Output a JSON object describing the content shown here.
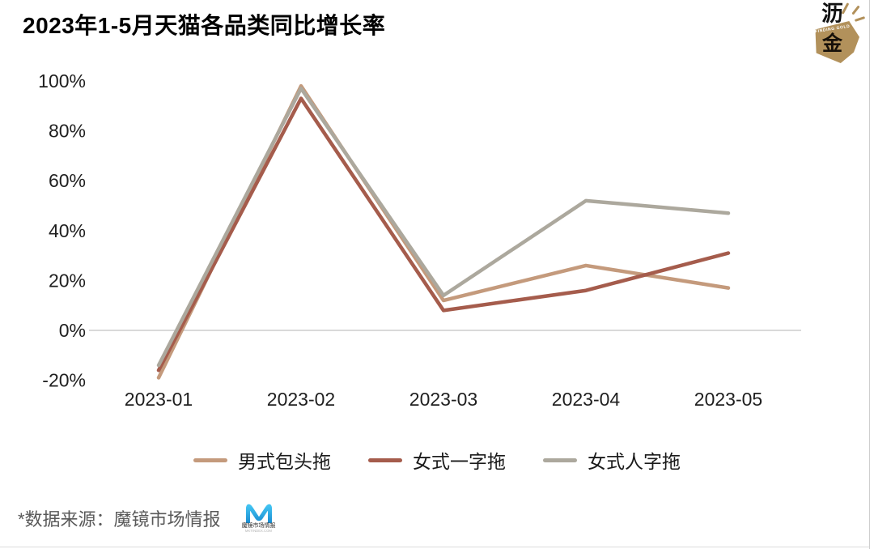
{
  "page": {
    "title": "2023年1-5月天猫各品类同比增长率",
    "source_note": "*数据来源：魔镜市场情报"
  },
  "brand_logo": {
    "char_top": "沥",
    "char_bottom": "金",
    "caption": "FINDING GOLD",
    "gold_color": "#B2915B"
  },
  "source_logo": {
    "label": "魔镜市场情报",
    "sub_label": "MKTINDEX.COM",
    "blue_top": "#41C2F1",
    "blue_bottom": "#1B8ED2"
  },
  "chart_data": {
    "type": "line",
    "title": "2023年1-5月天猫各品类同比增长率",
    "categories": [
      "2023-01",
      "2023-02",
      "2023-03",
      "2023-04",
      "2023-05"
    ],
    "series": [
      {
        "name": "男式包头拖",
        "color": "#C49A7C",
        "values": [
          -19,
          98,
          12,
          26,
          17
        ]
      },
      {
        "name": "女式一字拖",
        "color": "#A55C4C",
        "values": [
          -16,
          93,
          8,
          16,
          31
        ]
      },
      {
        "name": "女式人字拖",
        "color": "#ACA89D",
        "values": [
          -14,
          97,
          14,
          52,
          47
        ]
      }
    ],
    "y_ticks": [
      {
        "label": "100%",
        "value": 100
      },
      {
        "label": "80%",
        "value": 80
      },
      {
        "label": "60%",
        "value": 60
      },
      {
        "label": "40%",
        "value": 40
      },
      {
        "label": "20%",
        "value": 20
      },
      {
        "label": "0%",
        "value": 0
      },
      {
        "label": "-20%",
        "value": -20
      }
    ],
    "ylim": [
      -25,
      105
    ],
    "ylabel": "",
    "xlabel": "",
    "grid": "zero-line-only",
    "zero_line_color": "#D9D9D9",
    "legend_position": "bottom"
  }
}
